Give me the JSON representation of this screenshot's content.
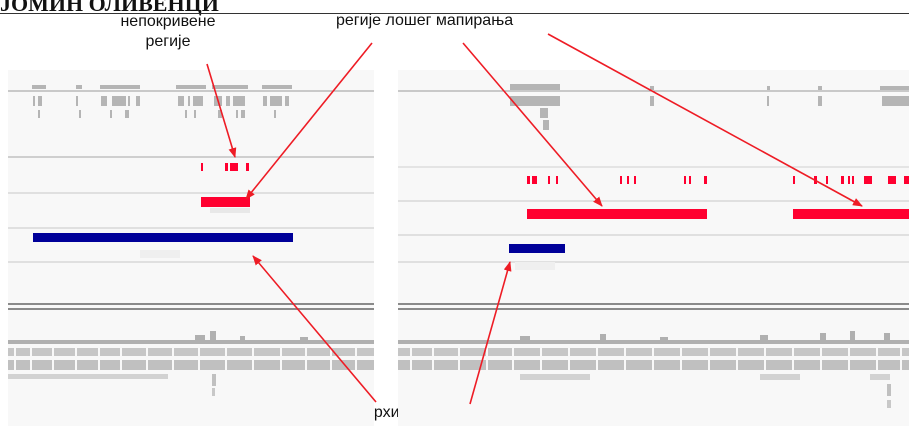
{
  "header": {
    "title": "ЈОМИН ОЛИВЕНЦИ"
  },
  "labels": {
    "uncovered_regions_line1": "непокривене",
    "uncovered_regions_line2": "регије",
    "poor_mapping_regions": "регије лошег мапирања",
    "archipelagos": "архипелази"
  },
  "colors": {
    "annotation_arrow": "#ee1c25",
    "poor_mapping_bar": "#ff0030",
    "archipelago_bar": "#000099",
    "track_gray": "#b8b8b8",
    "panel_background": "#f8f8f8"
  },
  "panels": [
    {
      "name": "left-genome-browser-view"
    },
    {
      "name": "right-genome-browser-view"
    }
  ]
}
